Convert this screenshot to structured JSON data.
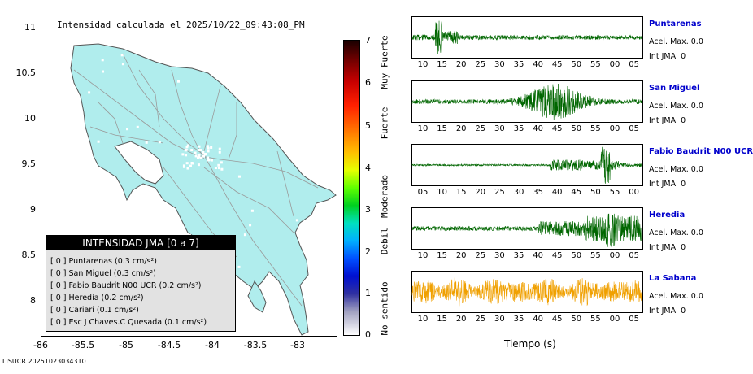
{
  "map": {
    "title": "Intensidad calculada el 2025/10/22_09:43:08_PM",
    "y_ticks": [
      "11",
      "10.5",
      "10",
      "9.5",
      "9",
      "8.5",
      "8"
    ],
    "x_ticks": [
      "-86",
      "-85.5",
      "-85",
      "-84.5",
      "-84",
      "-83.5",
      "-83"
    ],
    "land_color": "#b0eded",
    "legend": {
      "header": "INTENSIDAD JMA [0 a 7]",
      "items": [
        "[ 0 ]  Puntarenas (0.3 cm/s²)",
        "[ 0 ]  San Miguel (0.3 cm/s²)",
        "[ 0 ]  Fabio Baudrit N00 UCR (0.2 cm/s²)",
        "[ 0 ]  Heredia (0.2 cm/s²)",
        "[ 0 ]  Cariari (0.1 cm/s²)",
        "[ 0 ]  Esc J Chaves.C Quesada (0.1 cm/s²)"
      ]
    }
  },
  "scale": {
    "numbers": [
      "7",
      "6",
      "5",
      "4",
      "3",
      "2",
      "1",
      "0"
    ],
    "categories": [
      "Muy Fuerte",
      "Fuerte",
      "Moderado",
      "Debil",
      "No sentido"
    ]
  },
  "footer": "LISUCR 20251023034310",
  "x_axis_title": "Tiempo (s)",
  "chart_data": {
    "type": "line",
    "x_label": "Tiempo (s)",
    "series": [
      {
        "name": "Puntarenas",
        "accel": "Acel. Max. 0.0",
        "jma": "Int JMA: 0",
        "color": "#006600",
        "ticks": [
          "10",
          "15",
          "20",
          "25",
          "30",
          "35",
          "40",
          "45",
          "50",
          "55",
          "00",
          "05"
        ]
      },
      {
        "name": "San Miguel",
        "accel": "Acel. Max. 0.0",
        "jma": "Int JMA: 0",
        "color": "#006600",
        "ticks": [
          "10",
          "15",
          "20",
          "25",
          "30",
          "35",
          "40",
          "45",
          "50",
          "55",
          "00",
          "05"
        ]
      },
      {
        "name": "Fabio Baudrit N00 UCR",
        "accel": "Acel. Max. 0.0",
        "jma": "Int JMA: 0",
        "color": "#006600",
        "ticks": [
          "05",
          "10",
          "15",
          "20",
          "25",
          "30",
          "35",
          "40",
          "45",
          "50",
          "55",
          "00"
        ]
      },
      {
        "name": "Heredia",
        "accel": "Acel. Max. 0.0",
        "jma": "Int JMA: 0",
        "color": "#006600",
        "ticks": [
          "10",
          "15",
          "20",
          "25",
          "30",
          "35",
          "40",
          "45",
          "50",
          "55",
          "00",
          "05"
        ]
      },
      {
        "name": "La Sabana",
        "accel": "Acel. Max. 0.0",
        "jma": "Int JMA: 0",
        "color": "#f0a000",
        "ticks": [
          "10",
          "15",
          "20",
          "25",
          "30",
          "35",
          "40",
          "45",
          "50",
          "55",
          "00",
          "05"
        ]
      }
    ]
  }
}
